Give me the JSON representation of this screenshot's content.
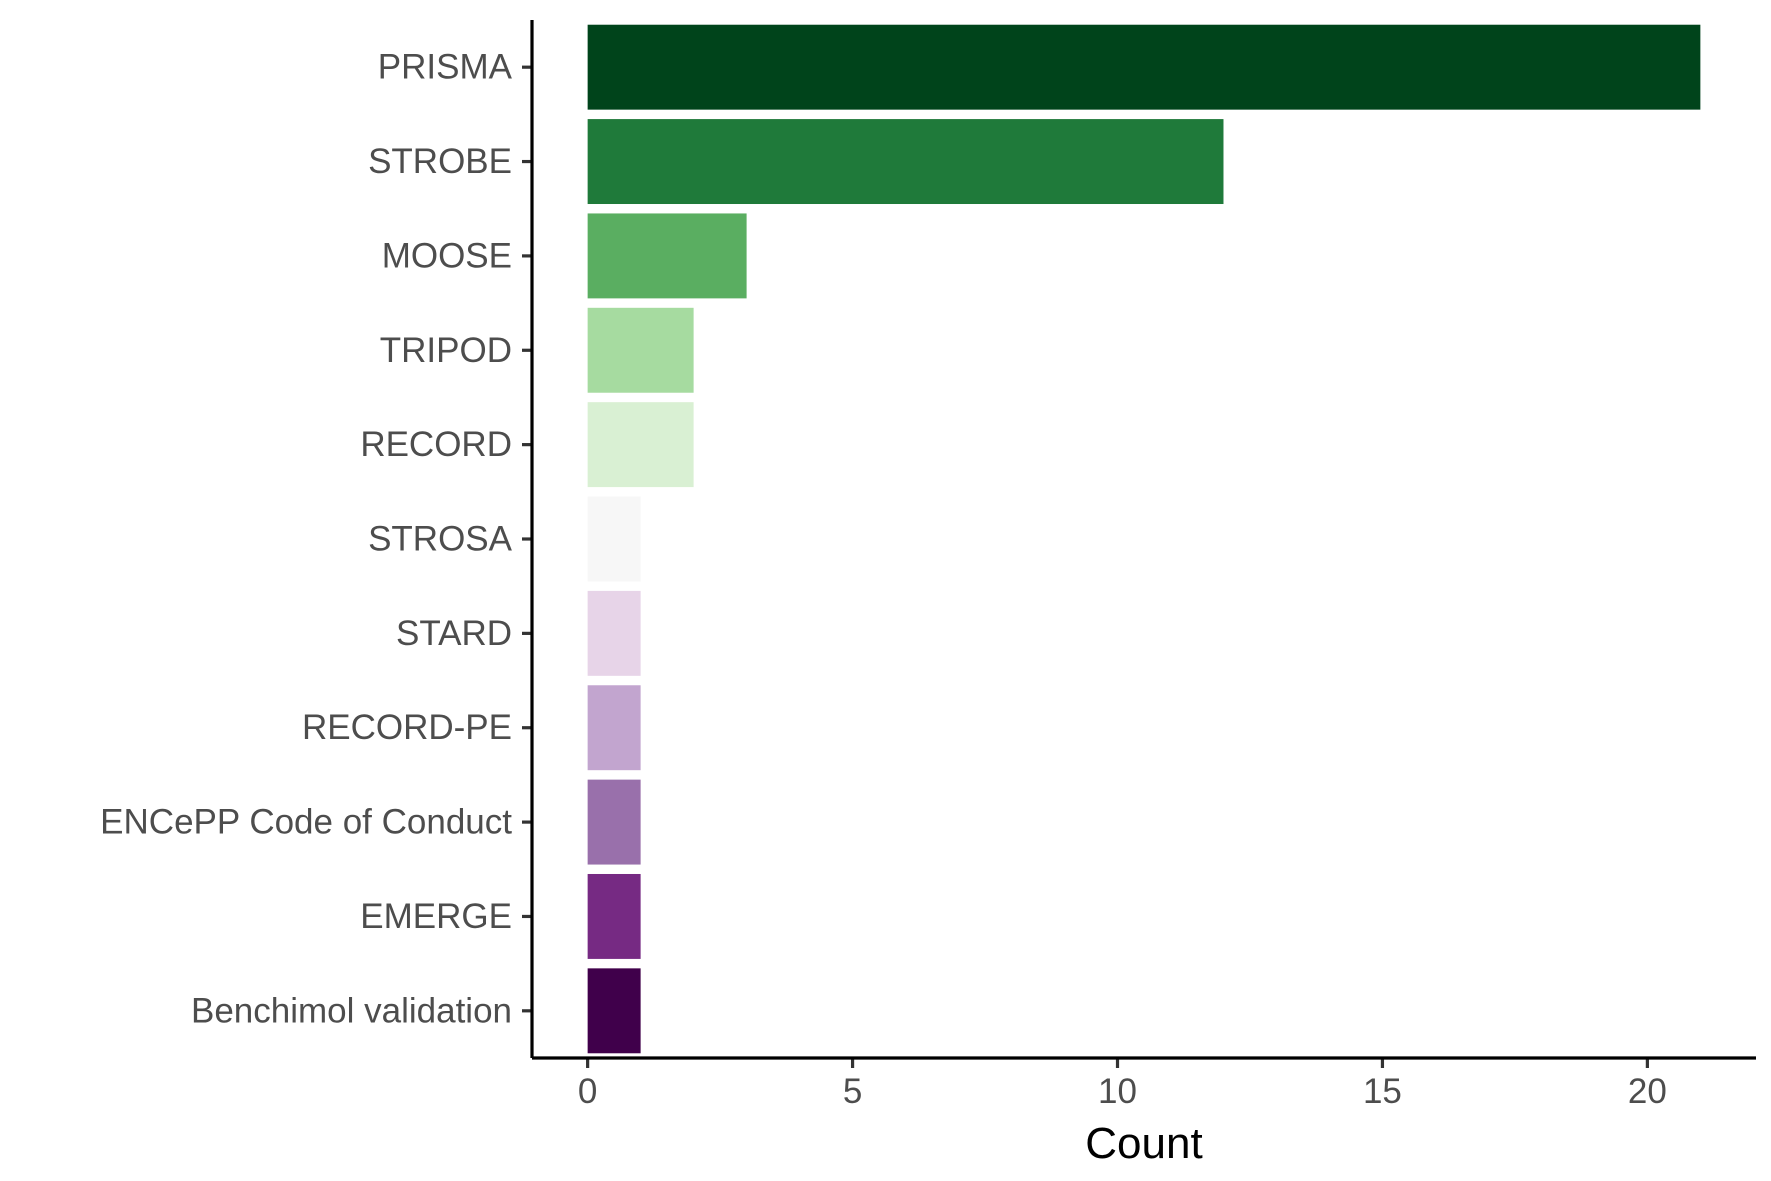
{
  "chart_data": {
    "type": "bar",
    "orientation": "horizontal",
    "title": "",
    "xlabel": "Count",
    "ylabel": "",
    "categories": [
      "PRISMA",
      "STROBE",
      "MOOSE",
      "TRIPOD",
      "RECORD",
      "STROSA",
      "STARD",
      "RECORD-PE",
      "ENCePP Code of Conduct",
      "EMERGE",
      "Benchimol validation"
    ],
    "values": [
      21,
      12,
      3,
      2,
      2,
      1,
      1,
      1,
      1,
      1,
      1
    ],
    "colors": [
      "#00441b",
      "#1f7a3a",
      "#5aae61",
      "#a6dba0",
      "#d9f0d3",
      "#f7f7f7",
      "#e7d4e8",
      "#c2a5cf",
      "#9970ab",
      "#762a83",
      "#40004b"
    ],
    "xlim": [
      -1.05,
      22.05
    ],
    "xticks": [
      0,
      5,
      10,
      15,
      20
    ],
    "xtick_labels": [
      "0",
      "5",
      "10",
      "15",
      "20"
    ],
    "grid": false,
    "legend": "none"
  }
}
